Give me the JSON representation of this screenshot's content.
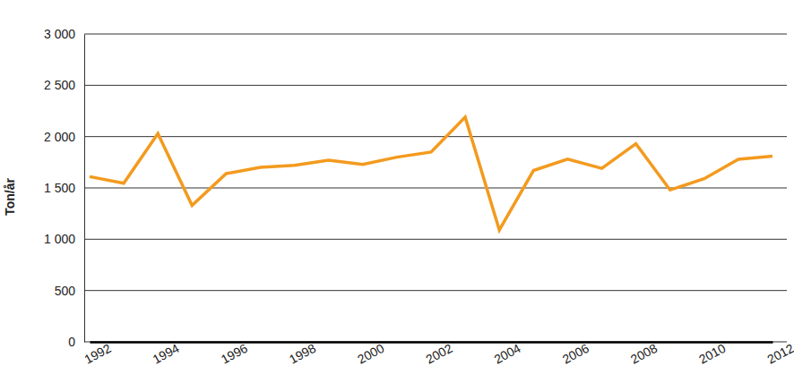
{
  "chart_data": {
    "type": "line",
    "y_label": "Ton/år",
    "x": [
      1992,
      1993,
      1994,
      1995,
      1996,
      1997,
      1998,
      1999,
      2000,
      2001,
      2002,
      2003,
      2004,
      2005,
      2006,
      2007,
      2008,
      2009,
      2010,
      2011,
      2012
    ],
    "values": [
      1610,
      1545,
      2030,
      1330,
      1640,
      1700,
      1720,
      1770,
      1730,
      1800,
      1850,
      2190,
      1090,
      1670,
      1780,
      1690,
      1930,
      1480,
      1590,
      1780,
      1810
    ],
    "color": "#f39a1e",
    "xlim": [
      1992,
      2012
    ],
    "xticks": [
      1992,
      1994,
      1996,
      1998,
      2000,
      2002,
      2004,
      2006,
      2008,
      2010,
      2012
    ],
    "ylim": [
      0,
      3000
    ],
    "yticks": [
      0,
      500,
      {
        "value": 1000,
        "label": "1 000"
      },
      {
        "value": 1500,
        "label": "1 500"
      },
      {
        "value": 2000,
        "label": "2 000"
      },
      {
        "value": 2500,
        "label": "2 500"
      },
      {
        "value": 3000,
        "label": "3 000"
      }
    ],
    "grid": true
  }
}
